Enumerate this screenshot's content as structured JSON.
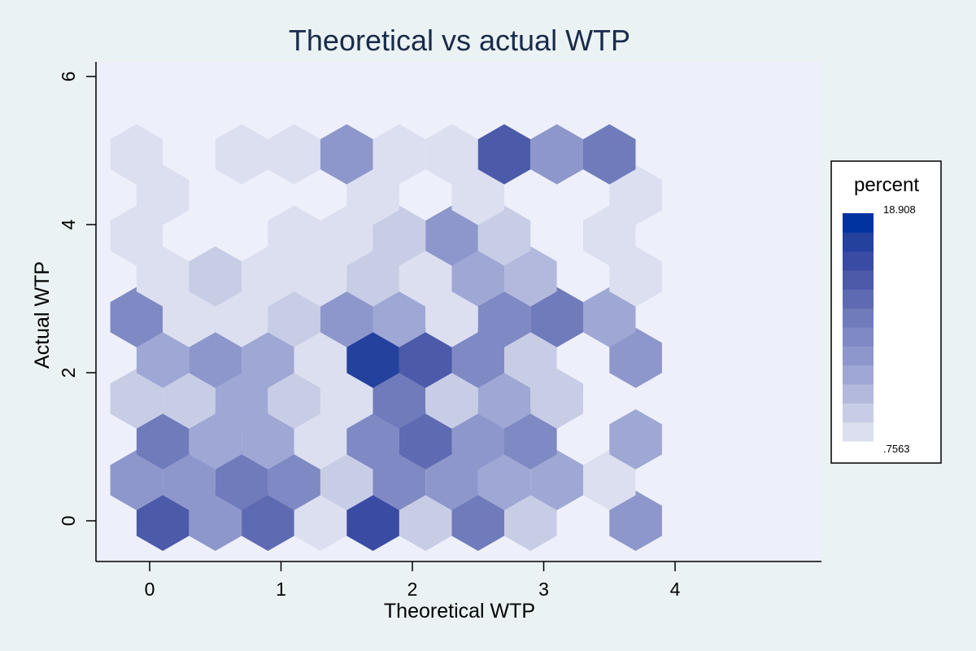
{
  "chart_data": {
    "type": "heatmap",
    "subtype": "hexbin",
    "title": "Theoretical vs actual WTP",
    "xlabel": "Theoretical WTP",
    "ylabel": "Actual WTP",
    "xlim": [
      -0.4,
      5.1
    ],
    "ylim": [
      -0.55,
      6.2
    ],
    "xticks": [
      0,
      1,
      2,
      3,
      4
    ],
    "yticks": [
      0,
      2,
      4,
      6
    ],
    "grid": false,
    "hex_radius": 0.4,
    "cells": [
      {
        "x": 0.1,
        "y": 0.0,
        "level": 9
      },
      {
        "x": 0.5,
        "y": 0.0,
        "level": 5
      },
      {
        "x": 0.9,
        "y": 0.0,
        "level": 8
      },
      {
        "x": 1.3,
        "y": 0.0,
        "level": 1
      },
      {
        "x": 1.7,
        "y": 0.0,
        "level": 10
      },
      {
        "x": 2.1,
        "y": 0.0,
        "level": 2
      },
      {
        "x": 2.5,
        "y": 0.0,
        "level": 7
      },
      {
        "x": 2.9,
        "y": 0.0,
        "level": 2
      },
      {
        "x": 3.7,
        "y": 0.0,
        "level": 5
      },
      {
        "x": -0.1,
        "y": 0.55,
        "level": 5
      },
      {
        "x": 0.3,
        "y": 0.55,
        "level": 5
      },
      {
        "x": 0.7,
        "y": 0.55,
        "level": 7
      },
      {
        "x": 1.1,
        "y": 0.55,
        "level": 6
      },
      {
        "x": 1.5,
        "y": 0.55,
        "level": 2
      },
      {
        "x": 1.9,
        "y": 0.55,
        "level": 6
      },
      {
        "x": 2.3,
        "y": 0.55,
        "level": 5
      },
      {
        "x": 2.7,
        "y": 0.55,
        "level": 4
      },
      {
        "x": 3.1,
        "y": 0.55,
        "level": 4
      },
      {
        "x": 3.5,
        "y": 0.55,
        "level": 1
      },
      {
        "x": 0.1,
        "y": 1.1,
        "level": 7
      },
      {
        "x": 0.5,
        "y": 1.1,
        "level": 4
      },
      {
        "x": 0.9,
        "y": 1.1,
        "level": 4
      },
      {
        "x": 1.3,
        "y": 1.1,
        "level": 1
      },
      {
        "x": 1.7,
        "y": 1.1,
        "level": 6
      },
      {
        "x": 2.1,
        "y": 1.1,
        "level": 8
      },
      {
        "x": 2.5,
        "y": 1.1,
        "level": 5
      },
      {
        "x": 2.9,
        "y": 1.1,
        "level": 6
      },
      {
        "x": 3.7,
        "y": 1.1,
        "level": 4
      },
      {
        "x": -0.1,
        "y": 1.65,
        "level": 2
      },
      {
        "x": 0.3,
        "y": 1.65,
        "level": 2
      },
      {
        "x": 0.7,
        "y": 1.65,
        "level": 4
      },
      {
        "x": 1.1,
        "y": 1.65,
        "level": 2
      },
      {
        "x": 1.5,
        "y": 1.65,
        "level": 1
      },
      {
        "x": 1.9,
        "y": 1.65,
        "level": 7
      },
      {
        "x": 2.3,
        "y": 1.65,
        "level": 2
      },
      {
        "x": 2.7,
        "y": 1.65,
        "level": 4
      },
      {
        "x": 3.1,
        "y": 1.65,
        "level": 2
      },
      {
        "x": 0.1,
        "y": 2.2,
        "level": 4
      },
      {
        "x": 0.5,
        "y": 2.2,
        "level": 5
      },
      {
        "x": 0.9,
        "y": 2.2,
        "level": 4
      },
      {
        "x": 1.3,
        "y": 2.2,
        "level": 1
      },
      {
        "x": 1.7,
        "y": 2.2,
        "level": 11
      },
      {
        "x": 2.1,
        "y": 2.2,
        "level": 9
      },
      {
        "x": 2.5,
        "y": 2.2,
        "level": 6
      },
      {
        "x": 2.9,
        "y": 2.2,
        "level": 2
      },
      {
        "x": 3.7,
        "y": 2.2,
        "level": 5
      },
      {
        "x": -0.1,
        "y": 2.75,
        "level": 6
      },
      {
        "x": 0.3,
        "y": 2.75,
        "level": 1
      },
      {
        "x": 0.7,
        "y": 2.75,
        "level": 1
      },
      {
        "x": 1.1,
        "y": 2.75,
        "level": 2
      },
      {
        "x": 1.5,
        "y": 2.75,
        "level": 5
      },
      {
        "x": 1.9,
        "y": 2.75,
        "level": 4
      },
      {
        "x": 2.3,
        "y": 2.75,
        "level": 1
      },
      {
        "x": 2.7,
        "y": 2.75,
        "level": 6
      },
      {
        "x": 3.1,
        "y": 2.75,
        "level": 7
      },
      {
        "x": 3.5,
        "y": 2.75,
        "level": 4
      },
      {
        "x": 0.1,
        "y": 3.3,
        "level": 1
      },
      {
        "x": 0.5,
        "y": 3.3,
        "level": 2
      },
      {
        "x": 0.9,
        "y": 3.3,
        "level": 1
      },
      {
        "x": 1.3,
        "y": 3.3,
        "level": 1
      },
      {
        "x": 1.7,
        "y": 3.3,
        "level": 2
      },
      {
        "x": 2.1,
        "y": 3.3,
        "level": 1
      },
      {
        "x": 2.5,
        "y": 3.3,
        "level": 4
      },
      {
        "x": 2.9,
        "y": 3.3,
        "level": 3
      },
      {
        "x": 3.7,
        "y": 3.3,
        "level": 1
      },
      {
        "x": -0.1,
        "y": 3.85,
        "level": 1
      },
      {
        "x": 1.1,
        "y": 3.85,
        "level": 1
      },
      {
        "x": 1.5,
        "y": 3.85,
        "level": 1
      },
      {
        "x": 1.9,
        "y": 3.85,
        "level": 2
      },
      {
        "x": 2.3,
        "y": 3.85,
        "level": 5
      },
      {
        "x": 2.7,
        "y": 3.85,
        "level": 2
      },
      {
        "x": 3.5,
        "y": 3.85,
        "level": 1
      },
      {
        "x": 0.1,
        "y": 4.4,
        "level": 1
      },
      {
        "x": 1.7,
        "y": 4.4,
        "level": 1
      },
      {
        "x": 2.5,
        "y": 4.4,
        "level": 1
      },
      {
        "x": 3.7,
        "y": 4.4,
        "level": 1
      },
      {
        "x": -0.1,
        "y": 4.95,
        "level": 1
      },
      {
        "x": 0.7,
        "y": 4.95,
        "level": 1
      },
      {
        "x": 1.1,
        "y": 4.95,
        "level": 1
      },
      {
        "x": 1.5,
        "y": 4.95,
        "level": 5
      },
      {
        "x": 1.9,
        "y": 4.95,
        "level": 1
      },
      {
        "x": 2.3,
        "y": 4.95,
        "level": 1
      },
      {
        "x": 2.7,
        "y": 4.95,
        "level": 9
      },
      {
        "x": 3.1,
        "y": 4.95,
        "level": 5
      },
      {
        "x": 3.5,
        "y": 4.95,
        "level": 7
      }
    ],
    "legend": {
      "title": "percent",
      "max_label": "18.908",
      "min_label": ".7563",
      "placement": "right",
      "colors": [
        "#dbdff0",
        "#c8cde6",
        "#b2b9dc",
        "#9fa8d4",
        "#8e97cb",
        "#7f89c3",
        "#6f7bbb",
        "#5e6bb3",
        "#4c5aaa",
        "#3a4ba4",
        "#24419e",
        "#0033a0"
      ]
    },
    "colors": {
      "plot_background": "#edf0fa",
      "page_background": "#eaf2f3",
      "title": "#1a2a4a"
    }
  }
}
